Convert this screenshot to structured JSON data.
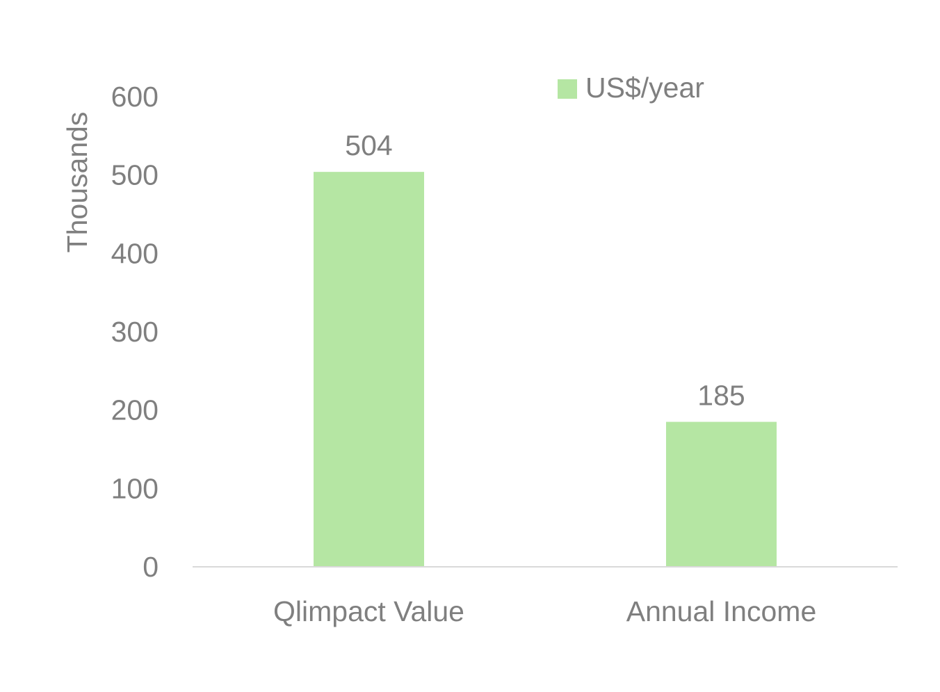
{
  "chart_data": {
    "type": "bar",
    "title": "",
    "xlabel": "",
    "ylabel": "Thousands",
    "categories": [
      "Qlimpact Value",
      "Annual Income"
    ],
    "series": [
      {
        "name": "US$/year",
        "values": [
          504,
          185
        ],
        "color": "#b5e6a3"
      }
    ],
    "data_labels": [
      "504",
      "185"
    ],
    "y_ticks": [
      0,
      100,
      200,
      300,
      400,
      500,
      600
    ],
    "ylim": [
      0,
      600
    ],
    "grid": false,
    "legend_position": "top-right",
    "colors": {
      "axis_line": "#d9d9d9",
      "text": "#7f7f7f"
    }
  }
}
